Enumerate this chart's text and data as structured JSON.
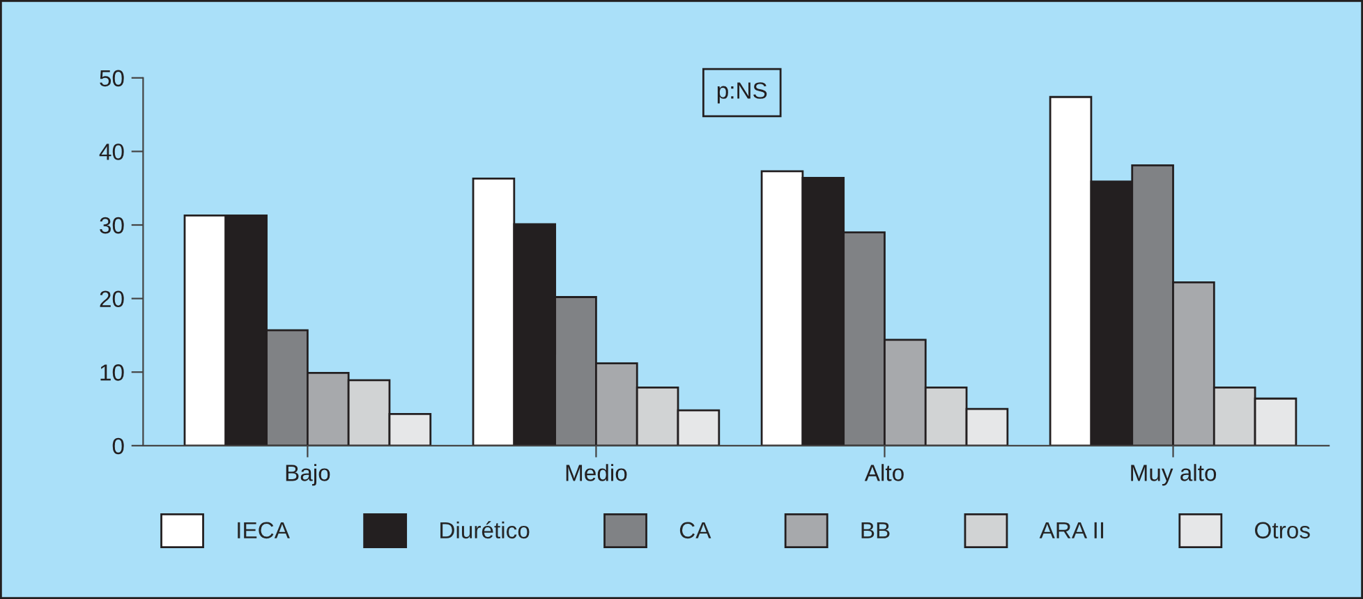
{
  "chart_data": {
    "type": "bar",
    "categories": [
      "Bajo",
      "Medio",
      "Alto",
      "Muy alto"
    ],
    "series": [
      {
        "name": "IECA",
        "color": "#ffffff",
        "values": [
          31.3,
          36.3,
          37.3,
          47.4
        ]
      },
      {
        "name": "Diurético",
        "color": "#231f20",
        "values": [
          31.3,
          30.1,
          36.4,
          35.9
        ]
      },
      {
        "name": "CA",
        "color": "#808285",
        "values": [
          15.7,
          20.2,
          29.0,
          38.1
        ]
      },
      {
        "name": "BB",
        "color": "#a7a9ac",
        "values": [
          9.9,
          11.2,
          14.4,
          22.2
        ]
      },
      {
        "name": "ARA II",
        "color": "#d1d3d4",
        "values": [
          8.9,
          7.9,
          7.9,
          7.9
        ]
      },
      {
        "name": "Otros",
        "color": "#e6e7e8",
        "values": [
          4.3,
          4.8,
          5.0,
          6.4
        ]
      }
    ],
    "ylim": [
      0,
      50
    ],
    "yticks": [
      0,
      10,
      20,
      30,
      40,
      50
    ],
    "grid": false,
    "legend": "bottom",
    "annotations": [
      "p:NS"
    ]
  }
}
